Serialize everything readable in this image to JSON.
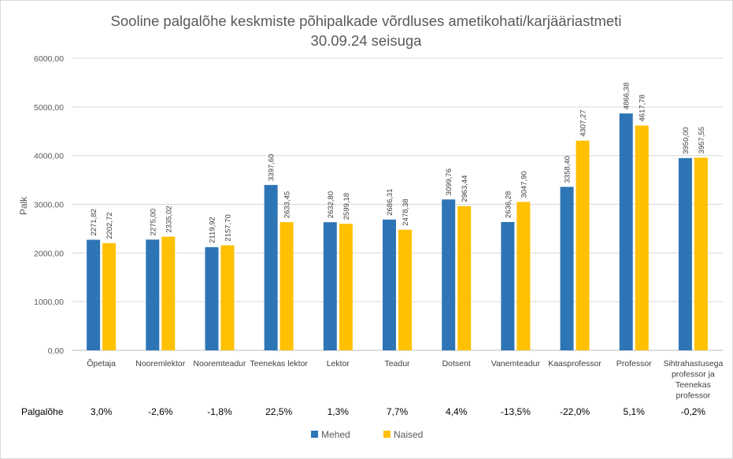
{
  "chart_data": {
    "type": "bar",
    "title_lines": [
      "Sooline palgalõhe keskmiste põhipalkade võrdluses ametikohati/karjääriastmeti",
      "30.09.24 seisuga"
    ],
    "ylabel": "Palk",
    "ylim": [
      0,
      6000
    ],
    "yticks": [
      0,
      1000,
      2000,
      3000,
      4000,
      5000,
      6000
    ],
    "ytick_labels": [
      "0,00",
      "1000,00",
      "2000,00",
      "3000,00",
      "4000,00",
      "5000,00",
      "6000,00"
    ],
    "grid": true,
    "legend_position": "bottom",
    "categories": [
      [
        "Õpetaja"
      ],
      [
        "Nooremlektor"
      ],
      [
        "Nooremteadur"
      ],
      [
        "Teenekas lektor"
      ],
      [
        "Lektor"
      ],
      [
        "Teadur"
      ],
      [
        "Dotsent"
      ],
      [
        "Vanemteadur"
      ],
      [
        "Kaasprofessor"
      ],
      [
        "Professor"
      ],
      [
        "Sihtrahastusega",
        "professor ja",
        "Teenekas",
        "professor"
      ]
    ],
    "series": [
      {
        "name": "Mehed",
        "color": "#2e75b6",
        "values": [
          2271.82,
          2275.0,
          2119.92,
          3397.6,
          2632.8,
          2686.31,
          3099.76,
          2636.28,
          3358.4,
          4866.38,
          3950.0
        ],
        "labels": [
          "2271,82",
          "2275,00",
          "2119,92",
          "3397,60",
          "2632,80",
          "2686,31",
          "3099,76",
          "2636,28",
          "3358,40",
          "4866,38",
          "3950,00"
        ]
      },
      {
        "name": "Naised",
        "color": "#ffc000",
        "values": [
          2202.72,
          2335.02,
          2157.7,
          2633.45,
          2599.18,
          2478.38,
          2963.44,
          3047.9,
          4307.27,
          4617.78,
          3957.55
        ],
        "labels": [
          "2202,72",
          "2335,02",
          "2157,70",
          "2633,45",
          "2599,18",
          "2478,38",
          "2963,44",
          "3047,90",
          "4307,27",
          "4617,78",
          "3957,55"
        ]
      }
    ],
    "gap_table": {
      "row_label": "Palgalõhe",
      "values": [
        "3,0%",
        "-2,6%",
        "-1,8%",
        "22,5%",
        "1,3%",
        "7,7%",
        "4,4%",
        "-13,5%",
        "-22,0%",
        "5,1%",
        "-0,2%"
      ]
    }
  }
}
